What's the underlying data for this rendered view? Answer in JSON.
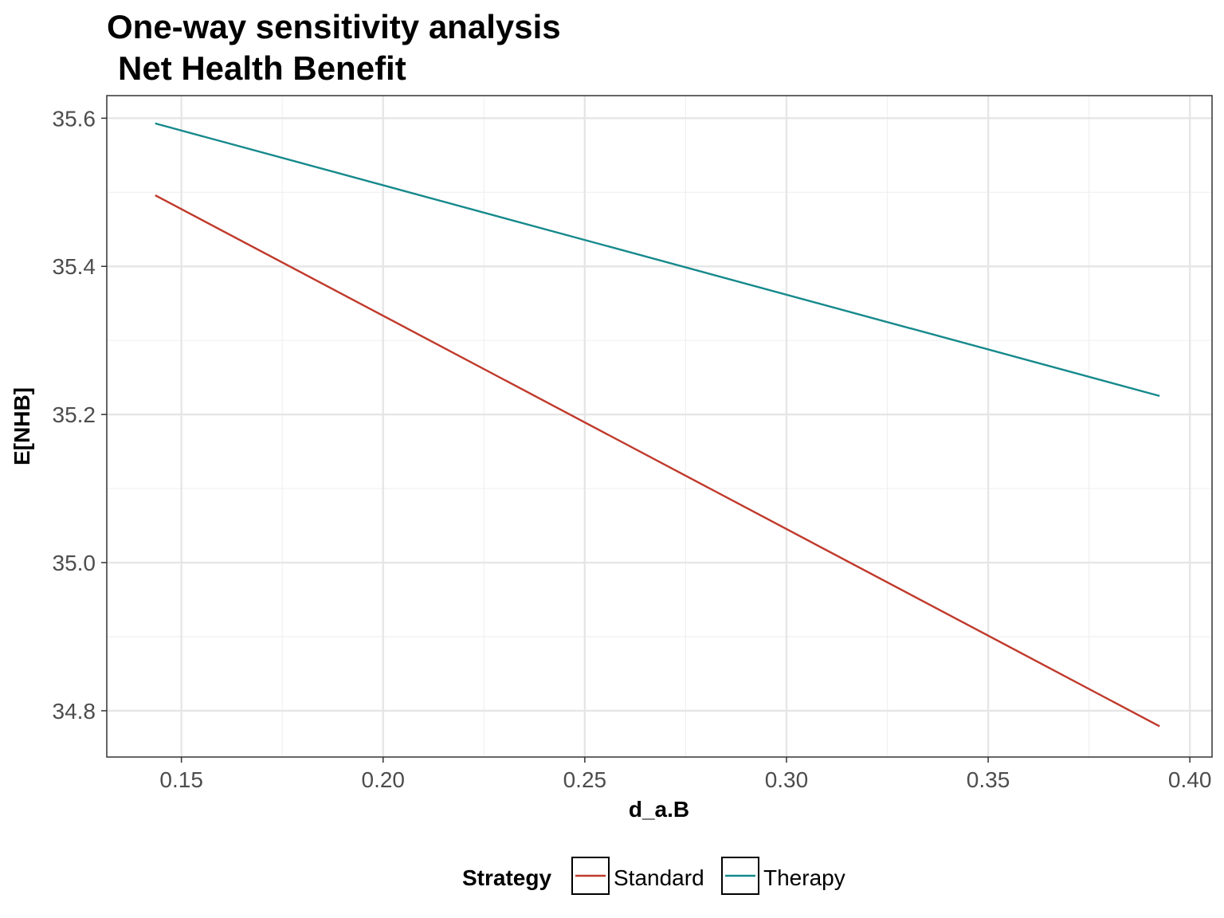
{
  "chart_data": {
    "type": "line",
    "title": "One-way sensitivity analysis",
    "subtitle": "Net Health Benefit",
    "xlabel": "d_a.B",
    "ylabel": "E[NHB]",
    "xlim": [
      0.1315,
      0.4055
    ],
    "ylim": [
      34.7375,
      35.6305
    ],
    "x_ticks": [
      0.15,
      0.2,
      0.25,
      0.3,
      0.35,
      0.4
    ],
    "x_tick_labels": [
      "0.15",
      "0.20",
      "0.25",
      "0.30",
      "0.35",
      "0.40"
    ],
    "y_ticks": [
      34.8,
      35.0,
      35.2,
      35.4,
      35.6
    ],
    "y_tick_labels": [
      "34.8",
      "35.0",
      "35.2",
      "35.4",
      "35.6"
    ],
    "grid": true,
    "legend": {
      "title": "Strategy",
      "position": "bottom"
    },
    "series": [
      {
        "name": "Standard",
        "color": "#c0392b",
        "x": [
          0.1435,
          0.3925
        ],
        "y": [
          35.496,
          34.779
        ]
      },
      {
        "name": "Therapy",
        "color": "#16898c",
        "x": [
          0.1435,
          0.3925
        ],
        "y": [
          35.593,
          35.225
        ]
      }
    ]
  }
}
